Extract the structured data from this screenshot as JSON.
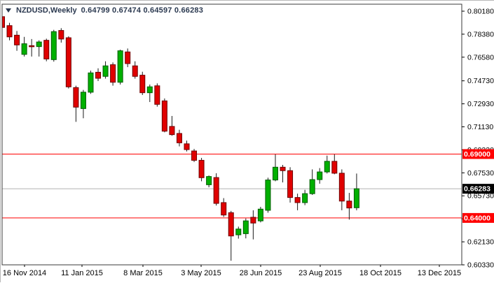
{
  "title": {
    "symbol_period": "NZDUSD,Weekly",
    "ohlc": "0.64799 0.67474 0.64597 0.66283"
  },
  "colors": {
    "bull": "#00b000",
    "bull_border": "#005c00",
    "bear": "#e00000",
    "bear_border": "#6f0000",
    "wick": "#1a1a1a",
    "hline": "#ff0000",
    "last_line": "#b0b0b0",
    "badge_red_bg": "#ff0000",
    "badge_black_bg": "#000000",
    "badge_text": "#ffffff",
    "axis_text": "#000000",
    "plot_border": "#3a3a3a"
  },
  "chart_data": {
    "type": "candlestick",
    "symbol": "NZDUSD",
    "timeframe": "Weekly",
    "ylim": [
      0.6033,
      0.8018
    ],
    "yticks": [
      "0.80180",
      "0.78380",
      "0.76580",
      "0.74730",
      "0.72930",
      "0.71130",
      "0.69330",
      "0.67530",
      "0.65730",
      "0.63930",
      "0.62130",
      "0.60330"
    ],
    "xticks": [
      "16 Nov 2014",
      "11 Jan 2015",
      "8 Mar 2015",
      "3 May 2015",
      "28 Jun 2015",
      "23 Aug 2015",
      "18 Oct 2015",
      "13 Dec 2015"
    ],
    "hlines": [
      {
        "price": 0.69,
        "label": "0.69000"
      },
      {
        "price": 0.64,
        "label": "0.64000"
      }
    ],
    "last_price": {
      "price": 0.66283,
      "label": "0.66283"
    },
    "candles": [
      [
        0.7975,
        0.7991,
        0.7863,
        0.7891
      ],
      [
        0.7905,
        0.7927,
        0.779,
        0.7817
      ],
      [
        0.783,
        0.7863,
        0.7708,
        0.7754
      ],
      [
        0.768,
        0.7817,
        0.7663,
        0.7763
      ],
      [
        0.7748,
        0.78,
        0.7663,
        0.7744
      ],
      [
        0.7741,
        0.779,
        0.7663,
        0.7777
      ],
      [
        0.779,
        0.7803,
        0.7626,
        0.7644
      ],
      [
        0.7639,
        0.7872,
        0.7623,
        0.7858
      ],
      [
        0.7867,
        0.7885,
        0.7772,
        0.78
      ],
      [
        0.781,
        0.7821,
        0.7413,
        0.7426
      ],
      [
        0.742,
        0.7435,
        0.7152,
        0.7267
      ],
      [
        0.7256,
        0.7402,
        0.718,
        0.7384
      ],
      [
        0.7384,
        0.7553,
        0.7371,
        0.7535
      ],
      [
        0.754,
        0.7571,
        0.7471,
        0.7493
      ],
      [
        0.7508,
        0.7626,
        0.749,
        0.759
      ],
      [
        0.7599,
        0.7617,
        0.7435,
        0.7462
      ],
      [
        0.7462,
        0.7717,
        0.7444,
        0.7708
      ],
      [
        0.7699,
        0.7726,
        0.758,
        0.7608
      ],
      [
        0.759,
        0.7626,
        0.749,
        0.7508
      ],
      [
        0.7517,
        0.7544,
        0.7362,
        0.738
      ],
      [
        0.738,
        0.7444,
        0.7307,
        0.7426
      ],
      [
        0.7434,
        0.7453,
        0.7271,
        0.7289
      ],
      [
        0.7316,
        0.7335,
        0.707,
        0.7079
      ],
      [
        0.7116,
        0.7198,
        0.7043,
        0.7052
      ],
      [
        0.7061,
        0.709,
        0.696,
        0.6988
      ],
      [
        0.698,
        0.7005,
        0.692,
        0.6935
      ],
      [
        0.6924,
        0.694,
        0.6838,
        0.6851
      ],
      [
        0.6851,
        0.687,
        0.6687,
        0.6715
      ],
      [
        0.666,
        0.6732,
        0.664,
        0.6724
      ],
      [
        0.6716,
        0.675,
        0.6497,
        0.6514
      ],
      [
        0.652,
        0.6555,
        0.6408,
        0.6423
      ],
      [
        0.6441,
        0.6455,
        0.6065,
        0.6259
      ],
      [
        0.6268,
        0.6332,
        0.6238,
        0.6313
      ],
      [
        0.6277,
        0.6396,
        0.624,
        0.6377
      ],
      [
        0.6405,
        0.646,
        0.6232,
        0.636
      ],
      [
        0.6377,
        0.6487,
        0.6365,
        0.6469
      ],
      [
        0.646,
        0.6715,
        0.6441,
        0.6697
      ],
      [
        0.6697,
        0.6897,
        0.6687,
        0.6797
      ],
      [
        0.6797,
        0.6815,
        0.6678,
        0.677
      ],
      [
        0.677,
        0.6797,
        0.652,
        0.656
      ],
      [
        0.656,
        0.659,
        0.646,
        0.652
      ],
      [
        0.652,
        0.662,
        0.65,
        0.659
      ],
      [
        0.659,
        0.678,
        0.658,
        0.67
      ],
      [
        0.67,
        0.679,
        0.6668,
        0.676
      ],
      [
        0.676,
        0.6888,
        0.6748,
        0.6843
      ],
      [
        0.6843,
        0.6897,
        0.6742,
        0.675
      ],
      [
        0.675,
        0.678,
        0.646,
        0.6532
      ],
      [
        0.6532,
        0.6596,
        0.6387,
        0.6478
      ],
      [
        0.64799,
        0.67474,
        0.64597,
        0.66283
      ]
    ]
  }
}
